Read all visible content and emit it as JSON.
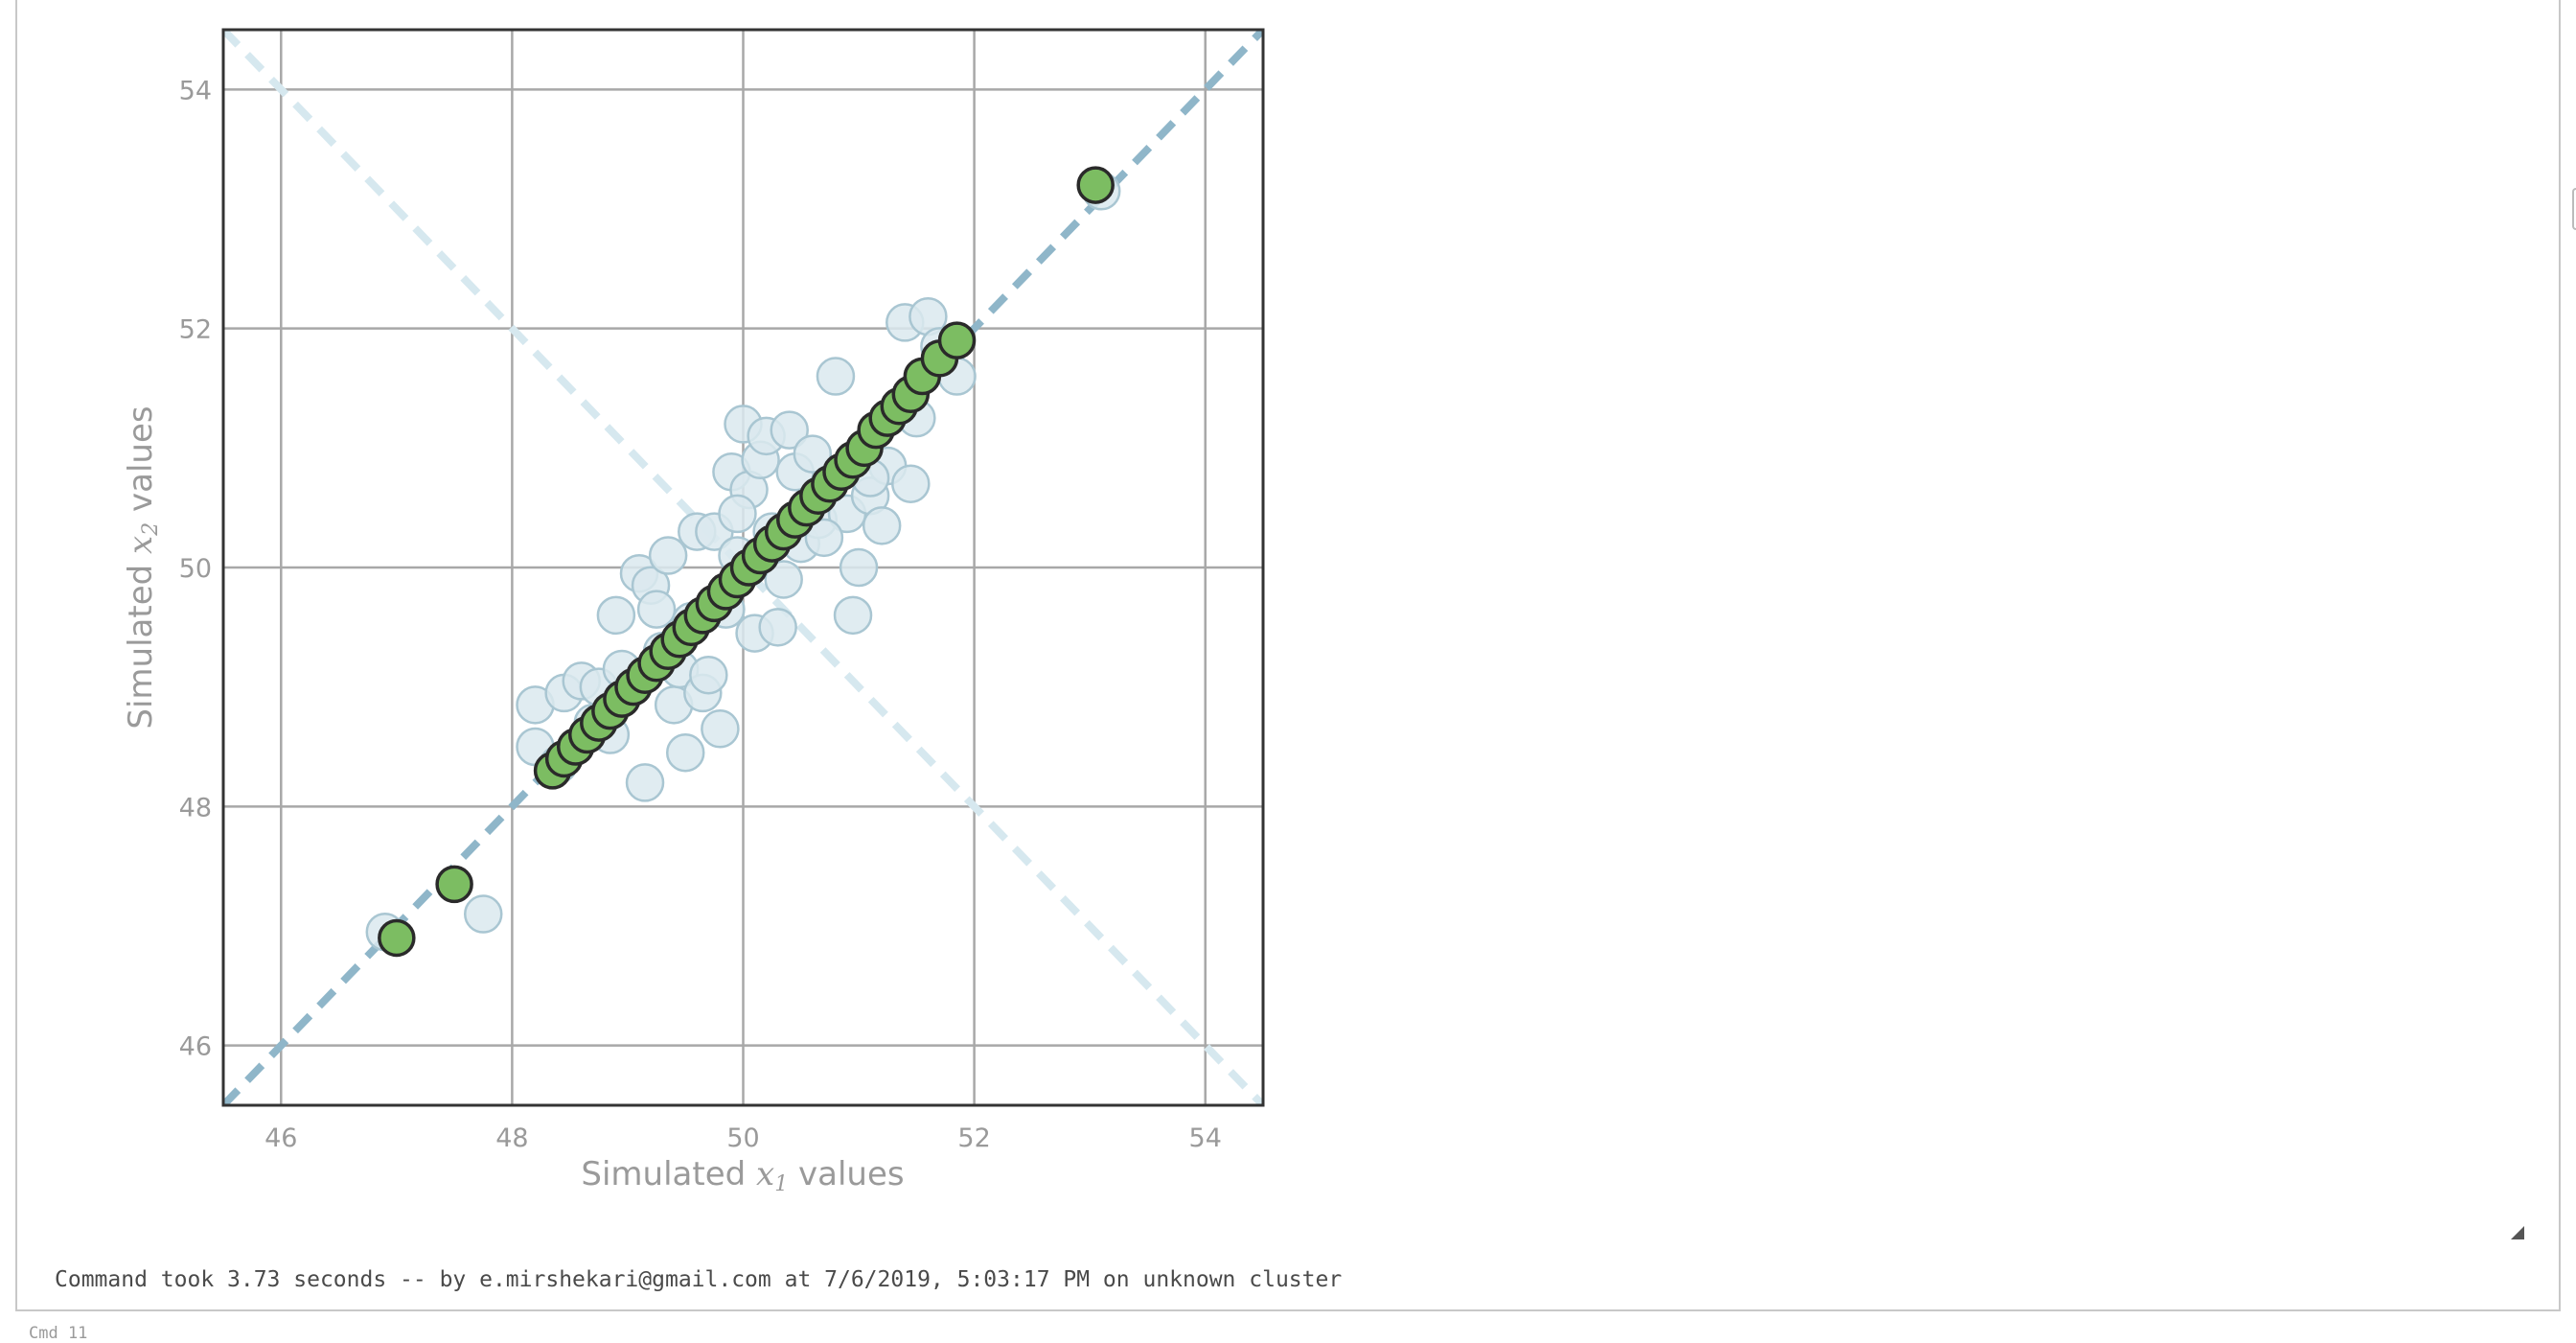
{
  "cell": {
    "footer_text": "Command took 3.73 seconds -- by e.mirshekari@gmail.com at 7/6/2019, 5:03:17 PM on unknown cluster",
    "next_cell_label": "Cmd 11"
  },
  "colors": {
    "raw_points": "#dbe9ee",
    "raw_points_edge": "#a9c6d2",
    "rotated_points": "#7cbd62",
    "rotated_points_edge": "#2a2a2a",
    "diagonal_line": "#8fb6c9",
    "anti_diagonal_line": "#d6e8ef",
    "grid": "#a8a8a8",
    "tick_text": "#9a9a9a"
  },
  "chart_data": {
    "type": "scatter",
    "xlabel": {
      "prefix": "Simulated ",
      "math": "x",
      "sub": "1",
      "suffix": " values"
    },
    "ylabel": {
      "prefix": "Simulated ",
      "math": "x",
      "sub": "2",
      "suffix": " values"
    },
    "xlim": [
      45.5,
      54.5
    ],
    "ylim": [
      45.5,
      54.5
    ],
    "xticks": [
      46,
      48,
      50,
      52,
      54
    ],
    "yticks": [
      46,
      48,
      50,
      52,
      54
    ],
    "grid": true,
    "legend": "none",
    "reference_lines": [
      {
        "style": "dashed",
        "color_key": "diagonal_line",
        "points": [
          [
            45.5,
            45.5
          ],
          [
            54.5,
            54.5
          ]
        ]
      },
      {
        "style": "dashed",
        "color_key": "anti_diagonal_line",
        "points": [
          [
            45.5,
            54.5
          ],
          [
            54.5,
            45.5
          ]
        ]
      }
    ],
    "series": [
      {
        "points": [
          [
            46.9,
            46.95
          ],
          [
            47.75,
            47.1
          ],
          [
            53.1,
            53.15
          ],
          [
            48.2,
            48.5
          ],
          [
            48.2,
            48.85
          ],
          [
            48.4,
            48.35
          ],
          [
            48.45,
            48.95
          ],
          [
            48.6,
            49.05
          ],
          [
            48.7,
            48.7
          ],
          [
            48.75,
            49.0
          ],
          [
            48.85,
            48.6
          ],
          [
            48.9,
            49.6
          ],
          [
            48.95,
            49.15
          ],
          [
            49.1,
            49.95
          ],
          [
            49.15,
            48.2
          ],
          [
            49.2,
            49.85
          ],
          [
            49.25,
            49.65
          ],
          [
            49.3,
            49.3
          ],
          [
            49.35,
            50.1
          ],
          [
            49.4,
            48.85
          ],
          [
            49.45,
            49.15
          ],
          [
            49.5,
            48.45
          ],
          [
            49.55,
            49.55
          ],
          [
            49.6,
            50.3
          ],
          [
            49.65,
            48.95
          ],
          [
            49.7,
            49.1
          ],
          [
            49.75,
            50.3
          ],
          [
            49.8,
            48.65
          ],
          [
            49.85,
            49.65
          ],
          [
            49.9,
            50.8
          ],
          [
            49.95,
            50.1
          ],
          [
            50.0,
            51.2
          ],
          [
            50.05,
            50.65
          ],
          [
            50.1,
            49.45
          ],
          [
            50.15,
            50.9
          ],
          [
            50.2,
            51.1
          ],
          [
            50.25,
            50.3
          ],
          [
            50.3,
            49.5
          ],
          [
            50.35,
            49.9
          ],
          [
            50.4,
            51.15
          ],
          [
            50.45,
            50.8
          ],
          [
            50.5,
            50.2
          ],
          [
            50.6,
            50.95
          ],
          [
            50.65,
            50.4
          ],
          [
            50.8,
            51.6
          ],
          [
            50.9,
            50.45
          ],
          [
            50.95,
            49.6
          ],
          [
            51.0,
            50.0
          ],
          [
            51.1,
            50.6
          ],
          [
            51.2,
            50.35
          ],
          [
            51.25,
            50.85
          ],
          [
            51.4,
            52.05
          ],
          [
            51.45,
            50.7
          ],
          [
            51.5,
            51.25
          ],
          [
            51.6,
            52.1
          ],
          [
            51.7,
            51.85
          ],
          [
            51.85,
            51.6
          ],
          [
            51.1,
            50.75
          ],
          [
            50.7,
            50.25
          ],
          [
            49.95,
            50.45
          ]
        ]
      },
      {
        "points": [
          [
            47.0,
            46.9
          ],
          [
            47.5,
            47.35
          ],
          [
            53.05,
            53.2
          ],
          [
            48.35,
            48.3
          ],
          [
            48.45,
            48.4
          ],
          [
            48.55,
            48.5
          ],
          [
            48.65,
            48.6
          ],
          [
            48.75,
            48.7
          ],
          [
            48.85,
            48.8
          ],
          [
            48.95,
            48.9
          ],
          [
            49.05,
            49.0
          ],
          [
            49.15,
            49.1
          ],
          [
            49.25,
            49.2
          ],
          [
            49.35,
            49.3
          ],
          [
            49.45,
            49.4
          ],
          [
            49.55,
            49.5
          ],
          [
            49.65,
            49.6
          ],
          [
            49.75,
            49.7
          ],
          [
            49.85,
            49.8
          ],
          [
            49.95,
            49.9
          ],
          [
            50.05,
            50.0
          ],
          [
            50.15,
            50.1
          ],
          [
            50.25,
            50.2
          ],
          [
            50.35,
            50.3
          ],
          [
            50.45,
            50.4
          ],
          [
            50.55,
            50.5
          ],
          [
            50.65,
            50.6
          ],
          [
            50.75,
            50.7
          ],
          [
            50.85,
            50.8
          ],
          [
            50.95,
            50.9
          ],
          [
            51.05,
            51.0
          ],
          [
            51.15,
            51.15
          ],
          [
            51.25,
            51.25
          ],
          [
            51.35,
            51.35
          ],
          [
            51.45,
            51.45
          ],
          [
            51.55,
            51.6
          ],
          [
            51.7,
            51.75
          ],
          [
            51.85,
            51.9
          ]
        ]
      }
    ]
  }
}
